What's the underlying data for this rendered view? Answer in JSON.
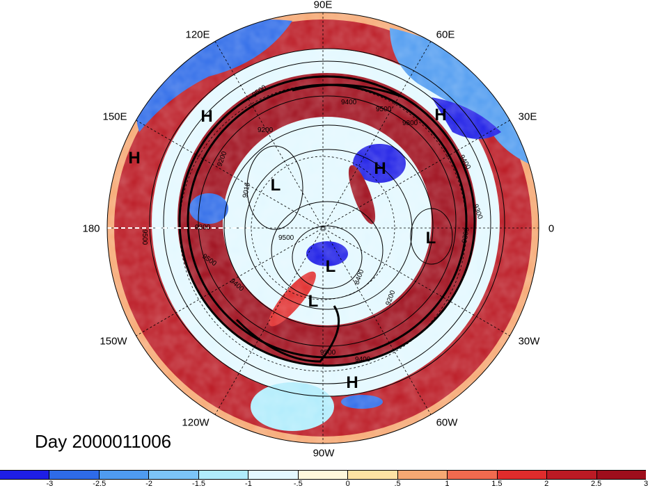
{
  "map": {
    "longitude_labels": [
      {
        "id": "90e",
        "text": "90E"
      },
      {
        "id": "60e",
        "text": "60E"
      },
      {
        "id": "30e",
        "text": "30E"
      },
      {
        "id": "0",
        "text": "0"
      },
      {
        "id": "30w",
        "text": "30W"
      },
      {
        "id": "60w",
        "text": "60W"
      },
      {
        "id": "90w",
        "text": "90W"
      },
      {
        "id": "120w",
        "text": "120W"
      },
      {
        "id": "150w",
        "text": "150W"
      },
      {
        "id": "180",
        "text": "180"
      },
      {
        "id": "150e",
        "text": "150E"
      },
      {
        "id": "120e",
        "text": "120E"
      }
    ],
    "pressure_system_markers": [
      "H",
      "H",
      "H",
      "H",
      "H",
      "L",
      "L",
      "L",
      "L"
    ],
    "contour_labels": [
      "9300",
      "9500",
      "9500",
      "9400",
      "9200",
      "8400",
      "9500",
      "9400",
      "9200",
      "9400",
      "9300",
      "9016",
      "9500",
      "9500",
      "9400",
      "9300",
      "9200",
      "9500",
      "9800"
    ],
    "colors": {
      "deep_red": "#a50f15",
      "red": "#d7301f",
      "deep_blue": "#1a1ad4",
      "pale": "#fff5d6"
    }
  },
  "day_label": "Day 2000011006",
  "colorbar": {
    "colors": [
      "#1e1ee6",
      "#2e6be8",
      "#4f9bf0",
      "#7cc4f7",
      "#b0ecfc",
      "#e3f8ff",
      "#fff8dc",
      "#fde2a4",
      "#f6a873",
      "#f06a4f",
      "#e02c2c",
      "#bb1a24",
      "#9e0e1c"
    ],
    "tick_labels": [
      "-3",
      "-2.5",
      "-2",
      "-1.5",
      "-1",
      "-.5",
      "0",
      ".5",
      "1",
      "1.5",
      "2",
      "2.5",
      "3"
    ]
  }
}
